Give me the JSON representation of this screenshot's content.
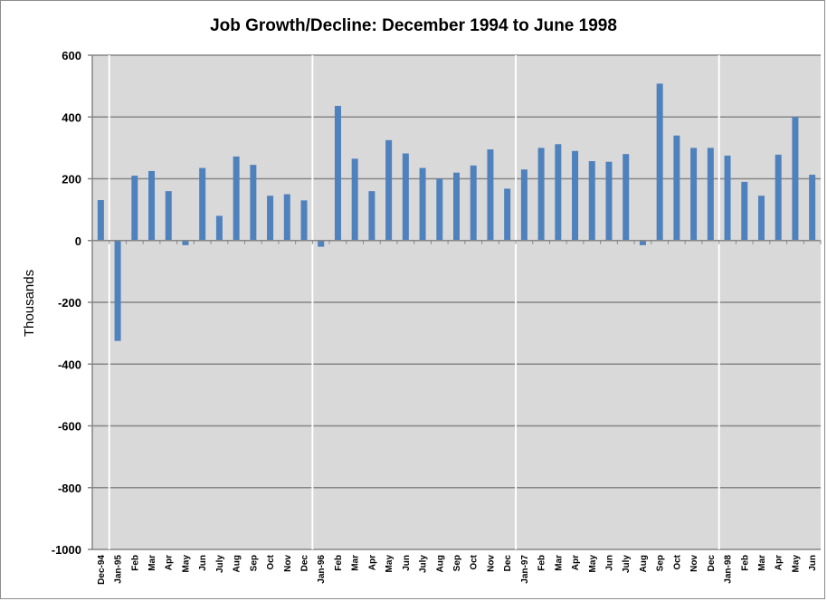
{
  "chart_data": {
    "type": "bar",
    "title": "Job Growth/Decline: December 1994 to June 1998",
    "xlabel": "",
    "ylabel": "Thousands",
    "ylim": [
      -1000,
      600
    ],
    "yticks": [
      "600",
      "400",
      "200",
      "0",
      "-200",
      "-400",
      "-600",
      "-800",
      "-1000"
    ],
    "ytick_values": [
      600,
      400,
      200,
      0,
      -200,
      -400,
      -600,
      -800,
      -1000
    ],
    "grid": "horizontal",
    "year_separators_after": [
      "Dec-94",
      "Dec",
      "Dec",
      "Dec"
    ],
    "colors": {
      "bar": "#4f81bd",
      "plot_background": "#d9d9d9",
      "gridline": "#868686",
      "separator": "#ffffff",
      "axis": "#868686"
    },
    "categories": [
      "Dec-94",
      "Jan-95",
      "Feb",
      "Mar",
      "Apr",
      "May",
      "Jun",
      "July",
      "Aug",
      "Sep",
      "Oct",
      "Nov",
      "Dec",
      "Jan-96",
      "Feb",
      "Mar",
      "Apr",
      "May",
      "Jun",
      "July",
      "Aug",
      "Sep",
      "Oct",
      "Nov",
      "Dec",
      "Jan-97",
      "Feb",
      "Mar",
      "Apr",
      "May",
      "Jun",
      "July",
      "Aug",
      "Sep",
      "Oct",
      "Nov",
      "Dec",
      "Jan-98",
      "Feb",
      "Mar",
      "Apr",
      "May",
      "Jun"
    ],
    "values": [
      131,
      -325,
      210,
      225,
      160,
      -15,
      235,
      80,
      272,
      245,
      145,
      150,
      130,
      -20,
      436,
      265,
      160,
      325,
      282,
      235,
      200,
      220,
      243,
      295,
      168,
      230,
      300,
      312,
      290,
      257,
      255,
      280,
      -15,
      508,
      340,
      300,
      300,
      275,
      190,
      145,
      278,
      400,
      213
    ]
  }
}
